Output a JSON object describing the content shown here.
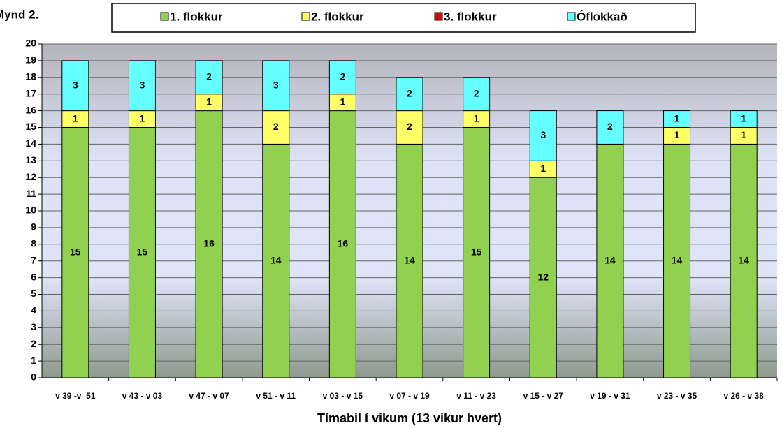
{
  "chart_data": {
    "type": "stacked-bar",
    "title": "Mynd 2.",
    "x_label": "Tímabil í vikum (13 vikur hvert)",
    "categories": [
      "v 39 -v  51",
      "v 43 - v 03",
      "v 47 - v 07",
      "v 51 - v 11",
      "v 03 - v 15",
      "v 07 - v 19",
      "v 11 - v 23",
      "v 15 - v 27",
      "v 19 - v 31",
      "v 23 - v 35",
      "v 26 - v 38"
    ],
    "series": [
      {
        "name": "1. flokkur",
        "color": "#92d050",
        "values": [
          15,
          15,
          16,
          14,
          16,
          14,
          15,
          12,
          14,
          14,
          14
        ]
      },
      {
        "name": "2. flokkur",
        "color": "#ffff66",
        "values": [
          1,
          1,
          1,
          2,
          1,
          2,
          1,
          1,
          0,
          1,
          1
        ]
      },
      {
        "name": "3. flokkur",
        "color": "#e00000",
        "values": [
          0,
          0,
          0,
          0,
          0,
          0,
          0,
          0,
          0,
          0,
          0
        ]
      },
      {
        "name": "Óflokkað",
        "color": "#66ffff",
        "values": [
          3,
          3,
          2,
          3,
          2,
          2,
          2,
          3,
          2,
          1,
          1
        ]
      }
    ],
    "ylim": [
      0,
      20
    ],
    "yticks": [
      0,
      1,
      2,
      3,
      4,
      5,
      6,
      7,
      8,
      9,
      10,
      11,
      12,
      13,
      14,
      15,
      16,
      17,
      18,
      19,
      20
    ],
    "grid": true,
    "legend": "top"
  }
}
